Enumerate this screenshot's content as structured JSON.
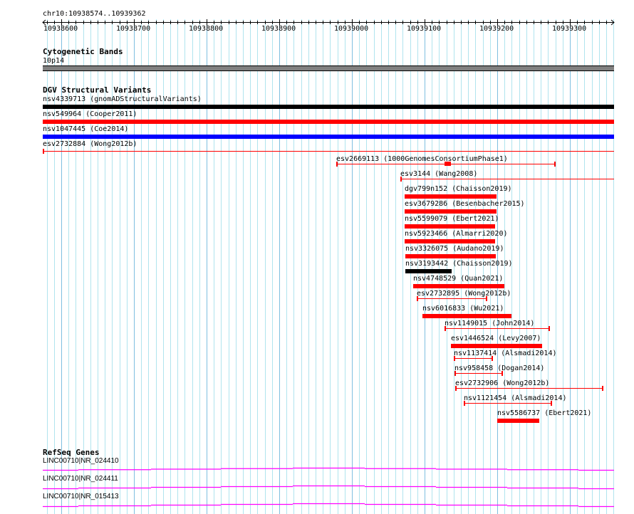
{
  "ruler": {
    "location": "chr10:10938574..10939362",
    "ticks": [
      "10938600",
      "10938700",
      "10938800",
      "10938900",
      "10939000",
      "10939100",
      "10939200",
      "10939300"
    ]
  },
  "cytoband_track": {
    "title": "Cytogenetic Bands",
    "band": "10p14",
    "band_color": "#808080"
  },
  "dgv_track": {
    "title": "DGV Structural Variants",
    "variants": [
      {
        "label": "nsv4339713 (gnomADStructuralVariants)",
        "color": "#000000"
      },
      {
        "label": "nsv549964 (Cooper2011)",
        "color": "#ff0000"
      },
      {
        "label": "nsv1047445 (Coe2014)",
        "color": "#0000ff"
      },
      {
        "label": "esv2732884 (Wong2012b)",
        "color": "#ff0000"
      },
      {
        "label": "esv2669113 (1000GenomesConsortiumPhase1)",
        "color": "#ff0000"
      },
      {
        "label": "esv3144 (Wang2008)",
        "color": "#ff0000"
      },
      {
        "label": "dgv799n152 (Chaisson2019)",
        "color": "#ff0000"
      },
      {
        "label": "esv3679286 (Besenbacher2015)",
        "color": "#ff0000"
      },
      {
        "label": "nsv5599079 (Ebert2021)",
        "color": "#ff0000"
      },
      {
        "label": "nsv5923466 (Almarri2020)",
        "color": "#ff0000"
      },
      {
        "label": "nsv3326075 (Audano2019)",
        "color": "#ff0000"
      },
      {
        "label": "nsv3193442 (Chaisson2019)",
        "color": "#000000"
      },
      {
        "label": "nsv4748529 (Quan2021)",
        "color": "#ff0000"
      },
      {
        "label": "esv2732895 (Wong2012b)",
        "color": "#ff0000"
      },
      {
        "label": "nsv6016833 (Wu2021)",
        "color": "#ff0000"
      },
      {
        "label": "nsv1149015 (John2014)",
        "color": "#ff0000"
      },
      {
        "label": "esv1446524 (Levy2007)",
        "color": "#ff0000"
      },
      {
        "label": "nsv1137414 (Alsmadi2014)",
        "color": "#ff0000"
      },
      {
        "label": "nsv958458 (Dogan2014)",
        "color": "#ff0000"
      },
      {
        "label": "esv2732906 (Wong2012b)",
        "color": "#ff0000"
      },
      {
        "label": "nsv1121454 (Alsmadi2014)",
        "color": "#ff0000"
      },
      {
        "label": "nsv5586737 (Ebert2021)",
        "color": "#ff0000"
      }
    ]
  },
  "refseq_track": {
    "title": "RefSeq Genes",
    "color": "#ff00ff",
    "genes": [
      {
        "label": "LINC00710|NR_024410"
      },
      {
        "label": "LINC00710|NR_024411"
      },
      {
        "label": "LINC00710|NR_015413"
      }
    ]
  }
}
